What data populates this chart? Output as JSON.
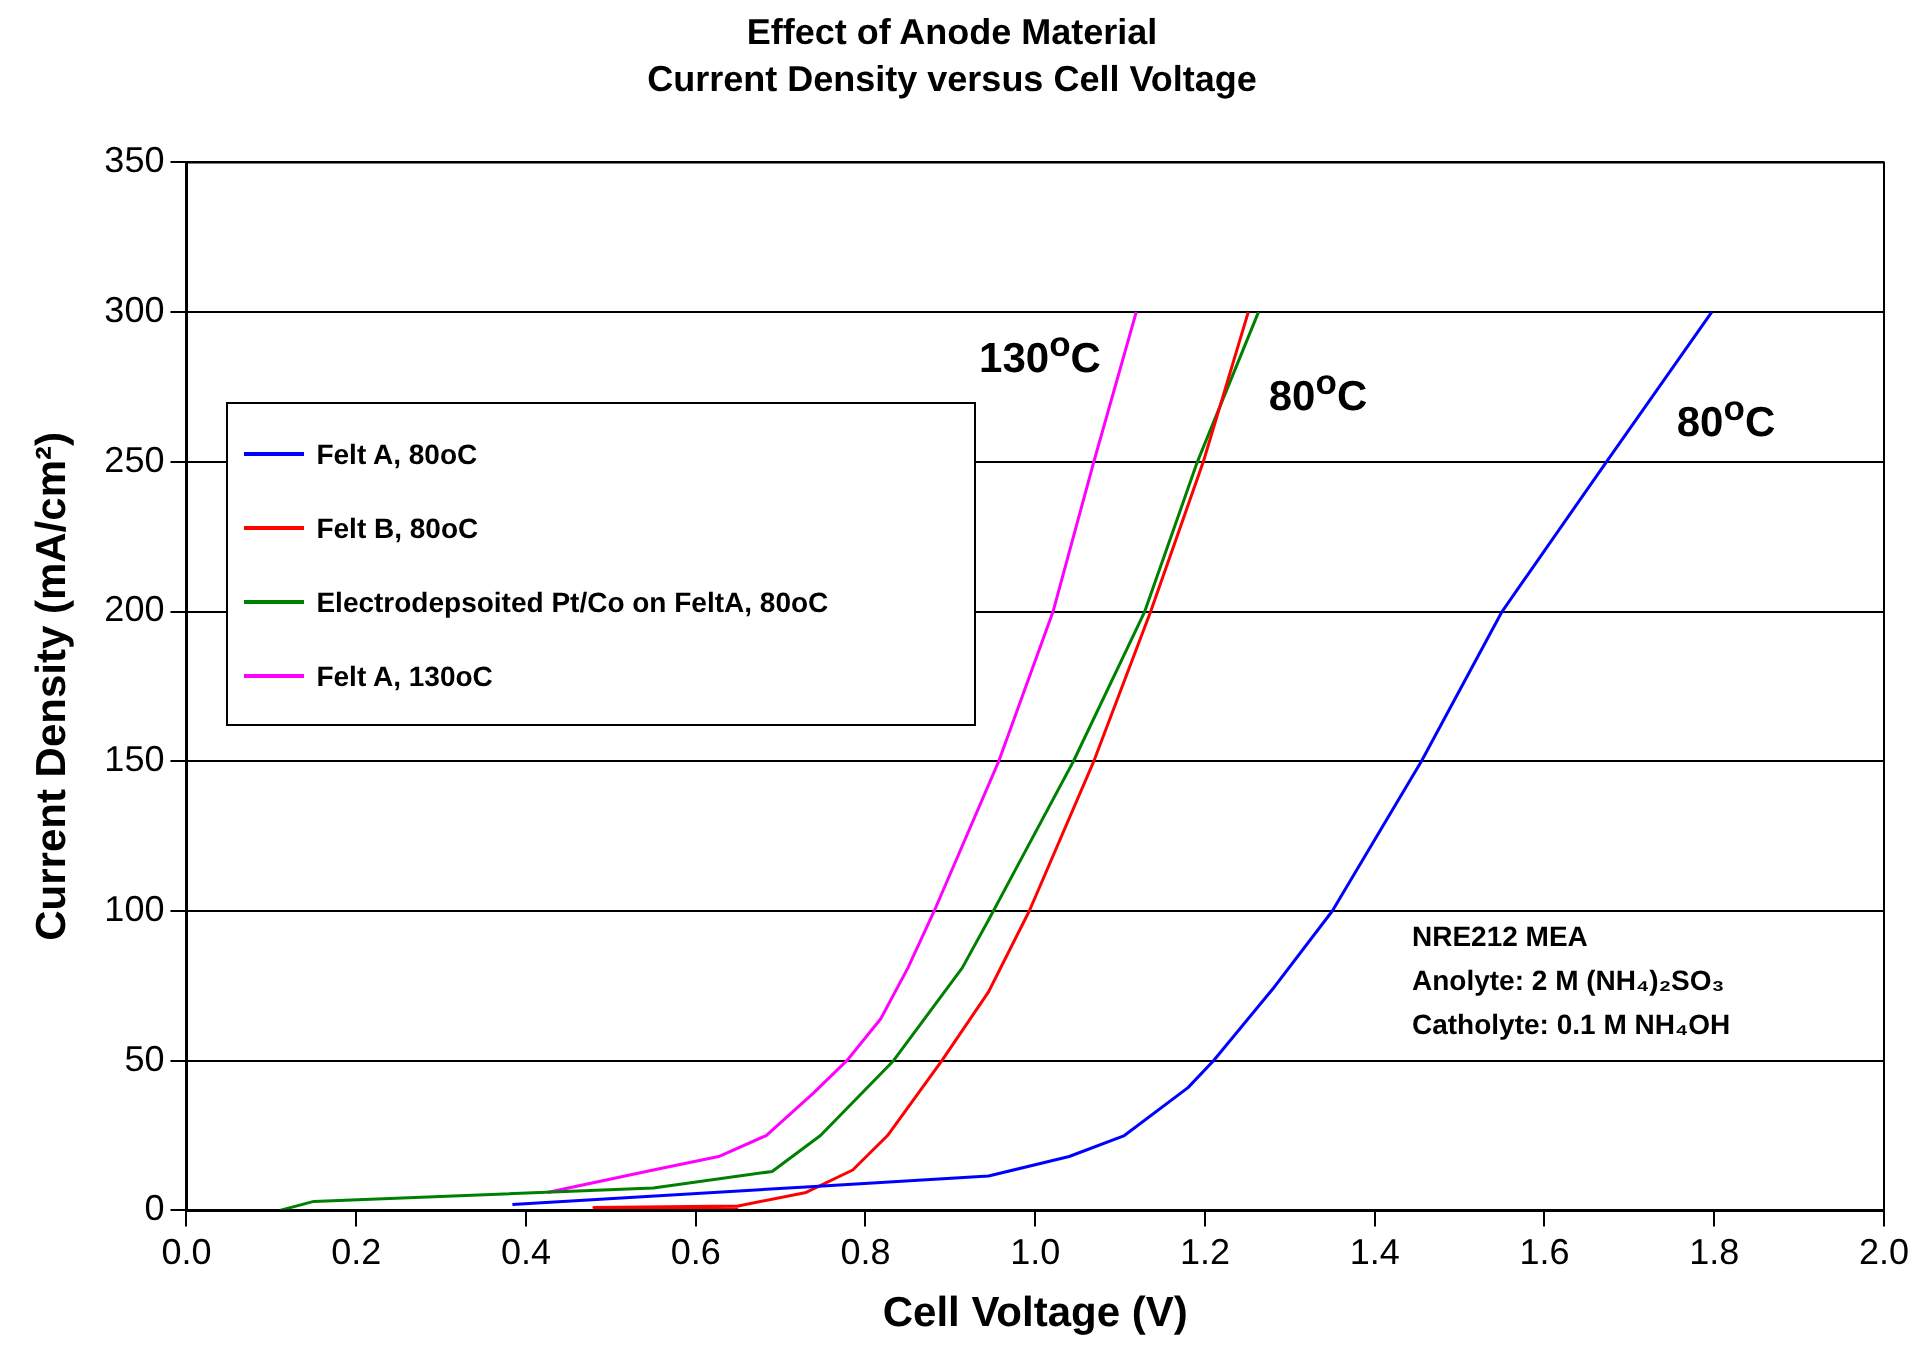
{
  "chart_data": {
    "type": "line",
    "title": "Effect of Anode Material",
    "subtitle": "Current Density versus Cell Voltage",
    "xlabel": "Cell Voltage (V)",
    "ylabel": "Current Density (mA/cm²)",
    "xlim": [
      0,
      2
    ],
    "xticks": [
      {
        "value": 0,
        "label": "0.0"
      },
      {
        "value": 0.2,
        "label": "0.2"
      },
      {
        "value": 0.4,
        "label": "0.4"
      },
      {
        "value": 0.6,
        "label": "0.6"
      },
      {
        "value": 0.8,
        "label": "0.8"
      },
      {
        "value": 1,
        "label": "1.0"
      },
      {
        "value": 1.2,
        "label": "1.2"
      },
      {
        "value": 1.4,
        "label": "1.4"
      },
      {
        "value": 1.6,
        "label": "1.6"
      },
      {
        "value": 1.8,
        "label": "1.8"
      },
      {
        "value": 2,
        "label": "2.0"
      }
    ],
    "ylim": [
      0,
      350
    ],
    "yticks": [
      0,
      50,
      100,
      150,
      200,
      250,
      300,
      350
    ],
    "grid": "y",
    "legend": "left",
    "marker": "none",
    "line_style": "solid",
    "series": [
      {
        "name": "Felt A, 80oC",
        "color": "#0000ff",
        "x": [
          0.384,
          0.74,
          0.945,
          1.04,
          1.105,
          1.18,
          1.21,
          1.28,
          1.35,
          1.455,
          1.55,
          1.673,
          1.797
        ],
        "values": [
          2,
          8,
          11.5,
          18,
          25,
          41,
          50,
          74,
          100,
          150,
          200,
          250,
          300
        ]
      },
      {
        "name": "Felt B, 80oC",
        "color": "#ff0000",
        "x": [
          0.65,
          0.48,
          0.65,
          0.73,
          0.785,
          0.826,
          0.89,
          0.945,
          0.993,
          1.069,
          1.136,
          1.198,
          1.251
        ],
        "values": [
          1,
          1,
          1.5,
          6,
          13.5,
          25,
          50,
          73,
          100,
          150,
          200,
          250,
          300
        ]
      },
      {
        "name": "Electrodepsoited Pt/Co on FeltA, 80oC",
        "color": "#008000",
        "x": [
          0.11,
          0.15,
          0.55,
          0.69,
          0.747,
          0.833,
          0.914,
          0.945,
          1.045,
          1.129,
          1.191,
          1.263
        ],
        "values": [
          0,
          3,
          7.5,
          13,
          25,
          50,
          81,
          97,
          150,
          200,
          250,
          300
        ]
      },
      {
        "name": "Felt A, 130oC",
        "color": "#ff00ff",
        "x": [
          0.425,
          0.55,
          0.627,
          0.683,
          0.738,
          0.778,
          0.818,
          0.85,
          0.881,
          0.957,
          1.021,
          1.069,
          1.119
        ],
        "values": [
          6,
          13.5,
          18,
          25,
          39,
          50,
          64,
          81,
          100,
          150,
          200,
          250,
          300
        ]
      }
    ],
    "annotations": [
      "130$^{o}$C",
      "80$^{o}$C",
      "80$^{o}$C",
      "NRE212 MEA\nAnolyte: 2 M (NH₄)₂SO₃\nCatholyte: 0.1 M NH₄OH"
    ]
  }
}
